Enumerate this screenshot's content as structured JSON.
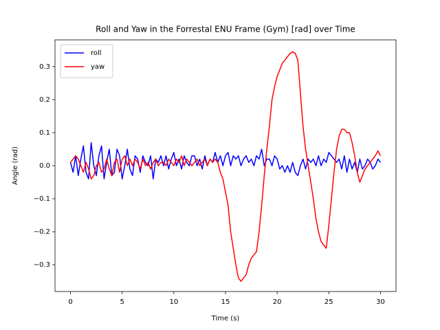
{
  "chart_data": {
    "type": "line",
    "title": "Roll and Yaw in the Forrestal ENU Frame (Gym) [rad] over Time",
    "x_label": "Time (s)",
    "y_label": "Angle (rad)",
    "x": [
      0,
      0.25,
      0.5,
      0.75,
      1,
      1.25,
      1.5,
      1.75,
      2,
      2.25,
      2.5,
      2.75,
      3,
      3.25,
      3.5,
      3.75,
      4,
      4.25,
      4.5,
      4.75,
      5,
      5.25,
      5.5,
      5.75,
      6,
      6.25,
      6.5,
      6.75,
      7,
      7.25,
      7.5,
      7.75,
      8,
      8.25,
      8.5,
      8.75,
      9,
      9.25,
      9.5,
      9.75,
      10,
      10.25,
      10.5,
      10.75,
      11,
      11.25,
      11.5,
      11.75,
      12,
      12.25,
      12.5,
      12.75,
      13,
      13.25,
      13.5,
      13.75,
      14,
      14.25,
      14.5,
      14.75,
      15,
      15.25,
      15.5,
      15.75,
      16,
      16.25,
      16.5,
      16.75,
      17,
      17.25,
      17.5,
      17.75,
      18,
      18.25,
      18.5,
      18.75,
      19,
      19.25,
      19.5,
      19.75,
      20,
      20.25,
      20.5,
      20.75,
      21,
      21.25,
      21.5,
      21.75,
      22,
      22.25,
      22.5,
      22.75,
      23,
      23.25,
      23.5,
      23.75,
      24,
      24.25,
      24.5,
      24.75,
      25,
      25.25,
      25.5,
      25.75,
      26,
      26.25,
      26.5,
      26.75,
      27,
      27.25,
      27.5,
      27.75,
      28,
      28.25,
      28.5,
      28.75,
      29,
      29.25,
      29.5,
      29.75,
      30
    ],
    "series": [
      {
        "name": "roll",
        "color": "#0000ff",
        "values": [
          0.01,
          -0.02,
          0.03,
          -0.03,
          0.02,
          0.06,
          -0.02,
          -0.04,
          0.07,
          0.0,
          -0.03,
          0.03,
          0.06,
          -0.04,
          0.01,
          0.05,
          -0.03,
          -0.02,
          0.05,
          0.03,
          -0.04,
          0.0,
          0.05,
          -0.01,
          -0.03,
          0.03,
          0.02,
          -0.02,
          0.03,
          0.01,
          0.0,
          0.03,
          -0.04,
          0.02,
          0.01,
          0.03,
          0.0,
          0.03,
          -0.01,
          0.02,
          0.04,
          0.0,
          0.02,
          -0.01,
          0.03,
          0.01,
          0.0,
          0.03,
          0.03,
          0.0,
          0.02,
          -0.01,
          0.03,
          0.0,
          0.02,
          0.01,
          0.04,
          0.01,
          0.03,
          0.0,
          0.03,
          0.04,
          0.0,
          0.03,
          0.02,
          0.03,
          0.0,
          0.02,
          0.03,
          0.01,
          0.02,
          0.0,
          0.03,
          0.02,
          0.05,
          0.0,
          0.02,
          0.02,
          0.0,
          0.03,
          0.02,
          -0.01,
          0.0,
          -0.02,
          0.0,
          -0.02,
          0.01,
          -0.02,
          -0.03,
          0.0,
          0.02,
          -0.01,
          0.02,
          0.01,
          0.02,
          0.0,
          0.03,
          0.0,
          0.02,
          0.01,
          0.04,
          0.03,
          0.02,
          0.01,
          0.02,
          -0.01,
          0.03,
          -0.02,
          0.02,
          -0.01,
          0.01,
          -0.02,
          0.02,
          -0.01,
          0.0,
          0.02,
          0.01,
          -0.01,
          0.0,
          0.02,
          0.01
        ]
      },
      {
        "name": "yaw",
        "color": "#ff0000",
        "values": [
          0.01,
          0.02,
          0.03,
          0.02,
          0.0,
          -0.02,
          0.01,
          -0.01,
          -0.04,
          -0.03,
          0.0,
          0.01,
          -0.02,
          -0.01,
          0.02,
          -0.01,
          -0.03,
          0.01,
          0.02,
          -0.02,
          0.02,
          0.03,
          0.0,
          0.02,
          0.0,
          0.02,
          0.01,
          -0.01,
          0.02,
          0.0,
          0.01,
          -0.01,
          0.01,
          0.02,
          0.0,
          0.01,
          0.01,
          0.0,
          0.02,
          0.01,
          0.0,
          0.02,
          0.01,
          0.03,
          0.0,
          0.02,
          0.01,
          0.0,
          0.01,
          0.02,
          0.0,
          0.01,
          0.02,
          0.0,
          0.02,
          0.01,
          0.02,
          0.01,
          -0.02,
          -0.04,
          -0.08,
          -0.12,
          -0.2,
          -0.25,
          -0.3,
          -0.34,
          -0.35,
          -0.34,
          -0.33,
          -0.3,
          -0.28,
          -0.27,
          -0.26,
          -0.2,
          -0.12,
          -0.03,
          0.05,
          0.12,
          0.2,
          0.24,
          0.27,
          0.29,
          0.31,
          0.32,
          0.33,
          0.34,
          0.345,
          0.34,
          0.32,
          0.22,
          0.12,
          0.05,
          0.0,
          -0.05,
          -0.1,
          -0.16,
          -0.2,
          -0.23,
          -0.24,
          -0.25,
          -0.18,
          -0.1,
          -0.02,
          0.05,
          0.09,
          0.11,
          0.11,
          0.1,
          0.1,
          0.07,
          0.03,
          -0.02,
          -0.05,
          -0.03,
          -0.01,
          0.0,
          0.01,
          0.02,
          0.03,
          0.045,
          0.03
        ]
      }
    ],
    "xlim": [
      -1.5,
      31.5
    ],
    "xticks": [
      0,
      5,
      10,
      15,
      20,
      25,
      30
    ],
    "ylim": [
      -0.381,
      0.381
    ],
    "yticks": [
      {
        "value": -0.3,
        "label": "−0.3"
      },
      {
        "value": -0.2,
        "label": "−0.2"
      },
      {
        "value": -0.1,
        "label": "−0.1"
      },
      {
        "value": 0,
        "label": "0.0"
      },
      0.1,
      0.2,
      0.3
    ],
    "legend": "upper left",
    "grid": false
  }
}
